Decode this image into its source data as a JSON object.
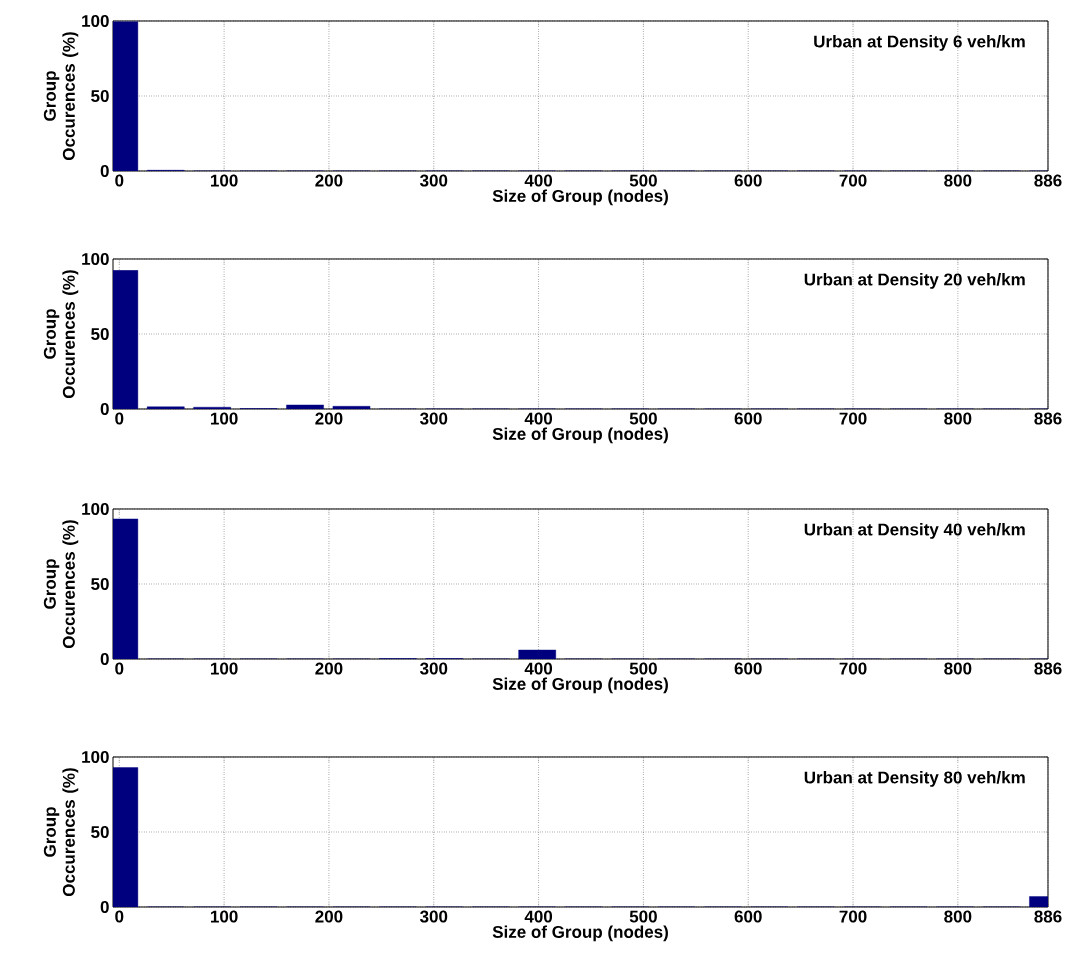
{
  "chart_data": [
    {
      "type": "bar",
      "title": "Urban at Density 6 veh/km",
      "xlabel": "Size of Group (nodes)",
      "ylabel": "Group Occurences (%)",
      "color": "#00007f",
      "grid": true,
      "x": [
        0,
        44.3,
        88.6,
        132.9,
        177.2,
        221.5,
        265.8,
        310.1,
        354.4,
        398.7,
        443,
        487.3,
        531.6,
        575.9,
        620.2,
        664.5,
        708.8,
        753.1,
        797.4,
        841.7,
        886
      ],
      "values": [
        99.5,
        0.5,
        0,
        0,
        0,
        0,
        0,
        0,
        0,
        0,
        0,
        0,
        0,
        0,
        0,
        0,
        0,
        0,
        0,
        0,
        0
      ],
      "xlim": [
        -6,
        886
      ],
      "ylim": [
        0,
        100
      ],
      "xticks": [
        0,
        100,
        200,
        300,
        400,
        500,
        600,
        700,
        800,
        886
      ],
      "yticks": [
        0,
        50,
        100
      ]
    },
    {
      "type": "bar",
      "title": "Urban at Density 20 veh/km",
      "xlabel": "Size of Group (nodes)",
      "ylabel": "Group Occurences (%)",
      "color": "#00007f",
      "grid": true,
      "x": [
        0,
        44.3,
        88.6,
        132.9,
        177.2,
        221.5,
        265.8,
        310.1,
        354.4,
        398.7,
        443,
        487.3,
        531.6,
        575.9,
        620.2,
        664.5,
        708.8,
        753.1,
        797.4,
        841.7,
        886
      ],
      "values": [
        92.5,
        1.5,
        1.2,
        0.3,
        2.7,
        1.8,
        0,
        0,
        0,
        0,
        0,
        0,
        0,
        0,
        0,
        0,
        0,
        0,
        0,
        0,
        0
      ],
      "xlim": [
        -6,
        886
      ],
      "ylim": [
        0,
        100
      ],
      "xticks": [
        0,
        100,
        200,
        300,
        400,
        500,
        600,
        700,
        800,
        886
      ],
      "yticks": [
        0,
        50,
        100
      ]
    },
    {
      "type": "bar",
      "title": "Urban at Density 40 veh/km",
      "xlabel": "Size of Group (nodes)",
      "ylabel": "Group Occurences (%)",
      "color": "#00007f",
      "grid": true,
      "x": [
        0,
        44.3,
        88.6,
        132.9,
        177.2,
        221.5,
        265.8,
        310.1,
        354.4,
        398.7,
        443,
        487.3,
        531.6,
        575.9,
        620.2,
        664.5,
        708.8,
        753.1,
        797.4,
        841.7,
        886
      ],
      "values": [
        93.4,
        0,
        0,
        0,
        0,
        0,
        0.3,
        0.3,
        0,
        6,
        0,
        0,
        0,
        0,
        0,
        0,
        0,
        0,
        0,
        0,
        0
      ],
      "xlim": [
        -6,
        886
      ],
      "ylim": [
        0,
        100
      ],
      "xticks": [
        0,
        100,
        200,
        300,
        400,
        500,
        600,
        700,
        800,
        886
      ],
      "yticks": [
        0,
        50,
        100
      ]
    },
    {
      "type": "bar",
      "title": "Urban at Density 80 veh/km",
      "xlabel": "Size of Group (nodes)",
      "ylabel": "Group Occurences (%)",
      "color": "#00007f",
      "grid": true,
      "x": [
        0,
        44.3,
        88.6,
        132.9,
        177.2,
        221.5,
        265.8,
        310.1,
        354.4,
        398.7,
        443,
        487.3,
        531.6,
        575.9,
        620.2,
        664.5,
        708.8,
        753.1,
        797.4,
        841.7,
        886
      ],
      "values": [
        93,
        0,
        0,
        0,
        0,
        0,
        0,
        0,
        0,
        0,
        0,
        0,
        0,
        0,
        0,
        0,
        0,
        0,
        0,
        0,
        7
      ],
      "xlim": [
        -6,
        886
      ],
      "ylim": [
        0,
        100
      ],
      "xticks": [
        0,
        100,
        200,
        300,
        400,
        500,
        600,
        700,
        800,
        886
      ],
      "yticks": [
        0,
        50,
        100
      ]
    }
  ]
}
